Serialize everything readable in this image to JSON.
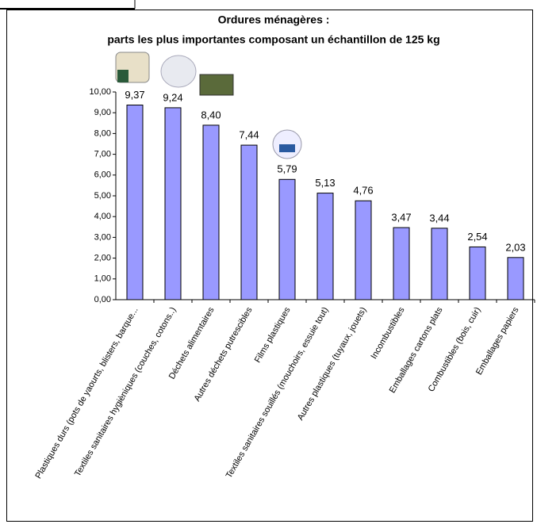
{
  "chart_data": {
    "type": "bar",
    "title": [
      "Ordures ménagères :",
      "parts les plus importantes composant un échantillon de 125 kg"
    ],
    "categories": [
      "Plastiques durs (pots de yaourts, blisters, barque...",
      "Textiles sanitaires hygièniques (couches, cotons..)",
      "Déchets alimentaires",
      "Autres déchets putrescibles",
      "Films plastiques",
      "Textiles sanitaires souillés (mouchoirs, essuie tout)",
      "Autres plastiques (tuyaux, jouets)",
      "Incombustibles",
      "Emballages cartons plats",
      "Combustibles (bois, cuir)",
      "Emballages papiers"
    ],
    "values": [
      9.37,
      9.24,
      8.4,
      7.44,
      5.79,
      5.13,
      4.76,
      3.47,
      3.44,
      2.54,
      2.03
    ],
    "value_labels": [
      "9,37",
      "9,24",
      "8,40",
      "7,44",
      "5,79",
      "5,13",
      "4,76",
      "3,47",
      "3,44",
      "2,54",
      "2,03"
    ],
    "color": "#9999ff",
    "ylim": [
      0,
      10
    ],
    "yticks": [
      {
        "value": 0,
        "label": "0,00"
      },
      {
        "value": 1,
        "label": "1,00"
      },
      {
        "value": 2,
        "label": "2,00"
      },
      {
        "value": 3,
        "label": "3,00"
      },
      {
        "value": 4,
        "label": "4,00"
      },
      {
        "value": 5,
        "label": "5,00"
      },
      {
        "value": 6,
        "label": "6,00"
      },
      {
        "value": 7,
        "label": "7,00"
      },
      {
        "value": 8,
        "label": "8,00"
      },
      {
        "value": 9,
        "label": "9,00"
      },
      {
        "value": 10,
        "label": "10,00"
      }
    ],
    "grid": false
  }
}
